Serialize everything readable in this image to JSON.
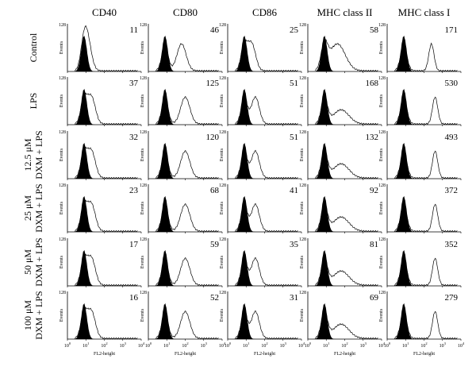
{
  "columns": [
    "CD40",
    "CD80",
    "CD86",
    "MHC class II",
    "MHC class I"
  ],
  "rows": [
    {
      "label": [
        "Control"
      ],
      "values": [
        "11",
        "46",
        "25",
        "58",
        "171"
      ]
    },
    {
      "label": [
        "LPS"
      ],
      "values": [
        "37",
        "125",
        "51",
        "168",
        "530"
      ]
    },
    {
      "label": [
        "12.5 μM",
        "DXM + LPS"
      ],
      "values": [
        "32",
        "120",
        "51",
        "132",
        "493"
      ]
    },
    {
      "label": [
        "25 μM",
        "DXM + LPS"
      ],
      "values": [
        "23",
        "68",
        "41",
        "92",
        "372"
      ]
    },
    {
      "label": [
        "50 μM",
        "DXM + LPS"
      ],
      "values": [
        "17",
        "59",
        "35",
        "81",
        "352"
      ]
    },
    {
      "label": [
        "100 μM",
        "DXM + LPS"
      ],
      "values": [
        "16",
        "52",
        "31",
        "69",
        "279"
      ]
    }
  ],
  "axes": {
    "y_max": "128",
    "y_label": "Events",
    "x_label": "FL2-height",
    "x_tick_base": "10",
    "x_tick_exponents": [
      "0",
      "1",
      "2",
      "3",
      "4"
    ]
  }
}
